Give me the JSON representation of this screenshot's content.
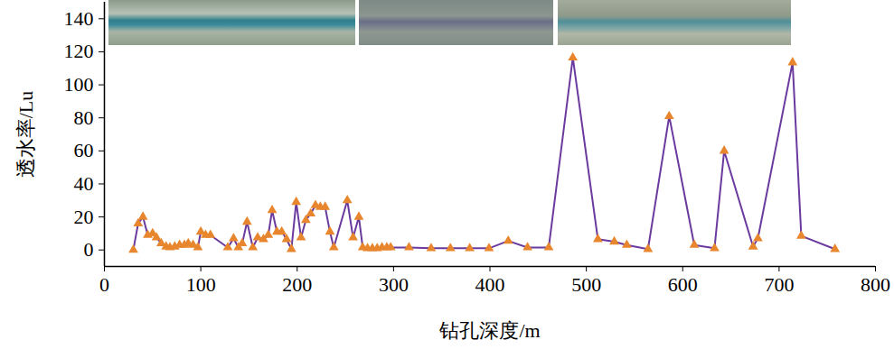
{
  "chart_data": {
    "type": "line",
    "x_label": "钻孔深度/m",
    "y_label": "透水率/Lu",
    "x": [
      30,
      35,
      40,
      45,
      50,
      54,
      59,
      64,
      68,
      73,
      78,
      83,
      87,
      92,
      97,
      100,
      105,
      110,
      128,
      134,
      139,
      143,
      148,
      154,
      159,
      165,
      170,
      174,
      179,
      184,
      189,
      194,
      199,
      204,
      209,
      214,
      219,
      224,
      229,
      234,
      238,
      252,
      258,
      264,
      268,
      273,
      278,
      283,
      288,
      293,
      297,
      316,
      339,
      359,
      379,
      399,
      419,
      439,
      461,
      486,
      512,
      529,
      542,
      564,
      586,
      612,
      633,
      643,
      673,
      678,
      714,
      723,
      758
    ],
    "values": [
      0,
      16,
      20,
      9,
      10,
      7.5,
      4,
      2,
      1.5,
      2,
      3,
      3,
      4,
      3,
      1.5,
      11,
      9,
      9,
      1.5,
      7,
      1.5,
      4,
      17,
      1.5,
      7.5,
      6.5,
      9,
      24,
      11,
      11,
      6.5,
      0.5,
      29,
      7.5,
      18,
      22,
      27,
      26,
      26,
      11,
      1.5,
      30,
      7.5,
      20,
      1.5,
      1,
      1,
      1,
      1.5,
      1.5,
      1.5,
      1.5,
      1,
      1,
      1,
      1,
      5.5,
      1.5,
      1.5,
      116.5,
      6.5,
      5,
      3,
      0.5,
      81,
      3,
      1,
      60,
      2,
      7,
      113.5,
      8.5,
      0.5
    ],
    "color": "#6b3a9e",
    "marker": "triangle",
    "xlim": [
      0,
      800
    ],
    "xticks": [
      0,
      100,
      200,
      300,
      400,
      500,
      600,
      700,
      800
    ],
    "ylim": [
      -10,
      150
    ],
    "yticks": [
      0,
      20,
      40,
      60,
      80,
      100,
      120,
      140
    ],
    "grid": false
  }
}
